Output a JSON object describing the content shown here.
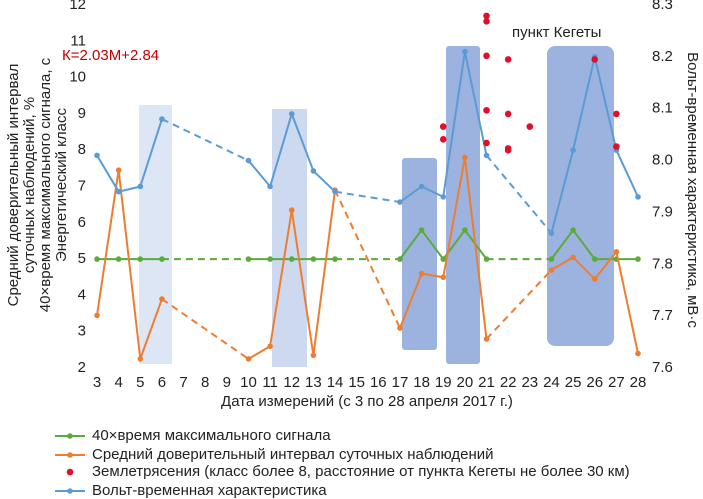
{
  "chart_data": {
    "type": "line",
    "annotations": [
      "К=2.03М+2.84",
      "пункт Кегеты"
    ],
    "xlabel": "Дата измерений (с 3 по 28 апреля 2017 г.)",
    "ylabel": [
      "Средний доверительный интервал",
      "суточных наблюдений, %",
      "40×время максимального сигнала, с",
      "Энергетический класс"
    ],
    "y2label": "Вольт-временная характеристика, мВ·с",
    "xlim": [
      3,
      28
    ],
    "xticks": [
      3,
      4,
      5,
      6,
      7,
      8,
      9,
      10,
      11,
      12,
      13,
      14,
      15,
      16,
      17,
      18,
      19,
      20,
      21,
      22,
      23,
      24,
      25,
      26,
      27,
      28
    ],
    "ylim": [
      2,
      12
    ],
    "yticks": [
      2,
      3,
      4,
      5,
      6,
      7,
      8,
      9,
      10,
      11,
      12
    ],
    "y2lim": [
      7.6,
      8.3
    ],
    "y2ticks": [
      {
        "value": 7.6,
        "label": "7.6"
      },
      7.7,
      7.8,
      7.9,
      {
        "value": 8,
        "label": "8.0"
      },
      8.1,
      8.2,
      8.3
    ],
    "series": [
      {
        "name": "40×время максимального сигнала",
        "color": "#5aab3c",
        "kind": "line",
        "x": [
          3,
          4,
          5,
          6,
          10,
          11,
          12,
          13,
          14,
          17,
          18,
          19,
          20,
          21,
          24,
          25,
          26,
          27,
          28
        ],
        "values": [
          5,
          5,
          5,
          5,
          5,
          5,
          5,
          5,
          5,
          5,
          5.8,
          5,
          5.8,
          5,
          5,
          5.8,
          5,
          5,
          5
        ]
      },
      {
        "name": "Средний доверительный интервал суточных наблюдений",
        "color": "#ed7d31",
        "kind": "line",
        "x": [
          3,
          4,
          5,
          6,
          10,
          11,
          12,
          13,
          14,
          17,
          18,
          19,
          20,
          21,
          24,
          25,
          26,
          27,
          28
        ],
        "values": [
          3.45,
          7.45,
          2.25,
          3.9,
          2.25,
          2.6,
          6.35,
          2.35,
          6.9,
          3.1,
          4.6,
          4.5,
          7.8,
          2.8,
          4.7,
          5.05,
          4.45,
          5.2,
          2.4
        ]
      },
      {
        "name": "Землетрясения (класс более 8, расстояние от пункта Кегеты не более 30 км)",
        "color": "#e0102a",
        "kind": "scatter",
        "x": [
          19,
          19,
          21,
          21,
          21,
          21,
          21,
          22,
          22,
          22,
          22,
          23,
          26,
          27,
          27
        ],
        "values": [
          8.65,
          8.3,
          11.7,
          11.55,
          10.6,
          9.1,
          8.2,
          10.5,
          9.0,
          8.05,
          8.0,
          8.65,
          10.5,
          9.0,
          8.1
        ]
      },
      {
        "name": "Вольт-временная характеристика",
        "color": "#5b9bd5",
        "kind": "line",
        "axis": "y2",
        "x": [
          3,
          4,
          5,
          6,
          10,
          11,
          12,
          13,
          14,
          17,
          18,
          19,
          20,
          21,
          24,
          25,
          26,
          27,
          28
        ],
        "values": [
          8.01,
          7.94,
          7.95,
          8.08,
          8.0,
          7.95,
          8.09,
          7.98,
          7.94,
          7.92,
          7.95,
          7.93,
          8.21,
          8.01,
          7.86,
          8.02,
          8.2,
          8.02,
          7.93
        ]
      }
    ]
  }
}
